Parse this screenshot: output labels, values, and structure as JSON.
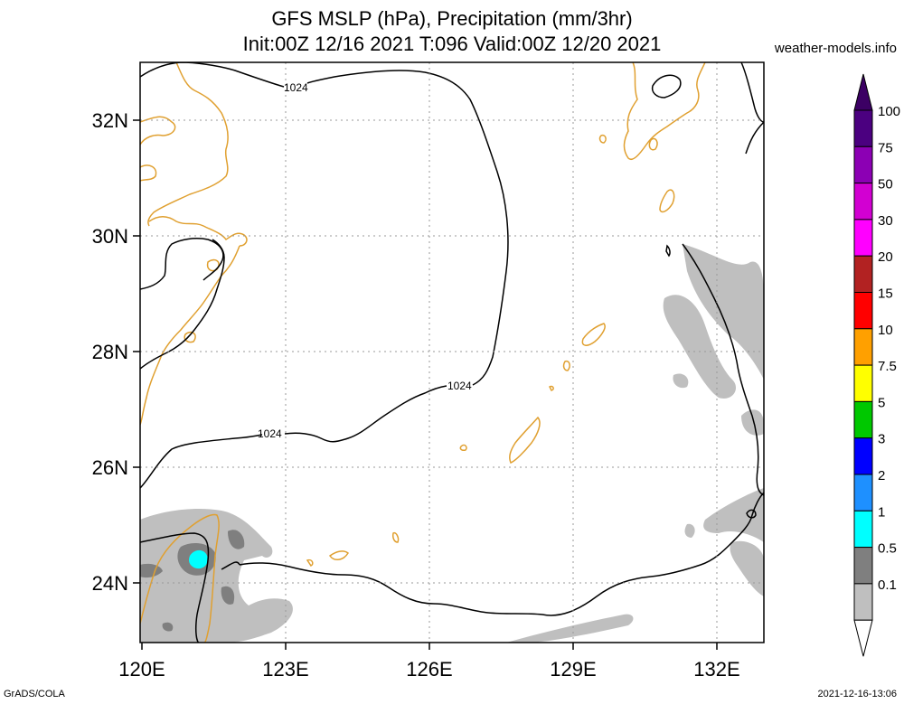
{
  "title_line1": "GFS MSLP (hPa), Precipitation (mm/3hr)",
  "title_line2": "Init:00Z 12/16 2021 T:096 Valid:00Z 12/20 2021",
  "website": "weather-models.info",
  "footer_left": "GrADS/COLA",
  "footer_right": "2021-12-16-13:06",
  "map": {
    "lon_range": [
      120,
      133
    ],
    "lat_range": [
      23,
      33
    ],
    "lon_ticks": [
      {
        "value": 120,
        "label": "120E"
      },
      {
        "value": 123,
        "label": "123E"
      },
      {
        "value": 126,
        "label": "126E"
      },
      {
        "value": 129,
        "label": "129E"
      },
      {
        "value": 132,
        "label": "132E"
      }
    ],
    "lat_ticks": [
      {
        "value": 32,
        "label": "32N"
      },
      {
        "value": 30,
        "label": "30N"
      },
      {
        "value": 28,
        "label": "28N"
      },
      {
        "value": 26,
        "label": "26N"
      },
      {
        "value": 24,
        "label": "24N"
      }
    ],
    "isobar_label": "1024",
    "isobar_labels": [
      "1024",
      "1024",
      "1024"
    ],
    "coastline_color": "#e0a030",
    "isobar_color": "#000000"
  },
  "colorbar": {
    "levels": [
      {
        "label": "100",
        "color": "#4b0080"
      },
      {
        "label": "75",
        "color": "#8c00b4"
      },
      {
        "label": "50",
        "color": "#d200d2"
      },
      {
        "label": "30",
        "color": "#ff00ff"
      },
      {
        "label": "20",
        "color": "#b22222"
      },
      {
        "label": "15",
        "color": "#ff0000"
      },
      {
        "label": "10",
        "color": "#ffa000"
      },
      {
        "label": "7.5",
        "color": "#ffff00"
      },
      {
        "label": "5",
        "color": "#00c800"
      },
      {
        "label": "3",
        "color": "#0000ff"
      },
      {
        "label": "2",
        "color": "#1e90ff"
      },
      {
        "label": "1",
        "color": "#00ffff"
      },
      {
        "label": "0.5",
        "color": "#7f7f7f"
      },
      {
        "label": "0.1",
        "color": "#bfbfbf"
      }
    ],
    "top_color": "#3c0064"
  }
}
